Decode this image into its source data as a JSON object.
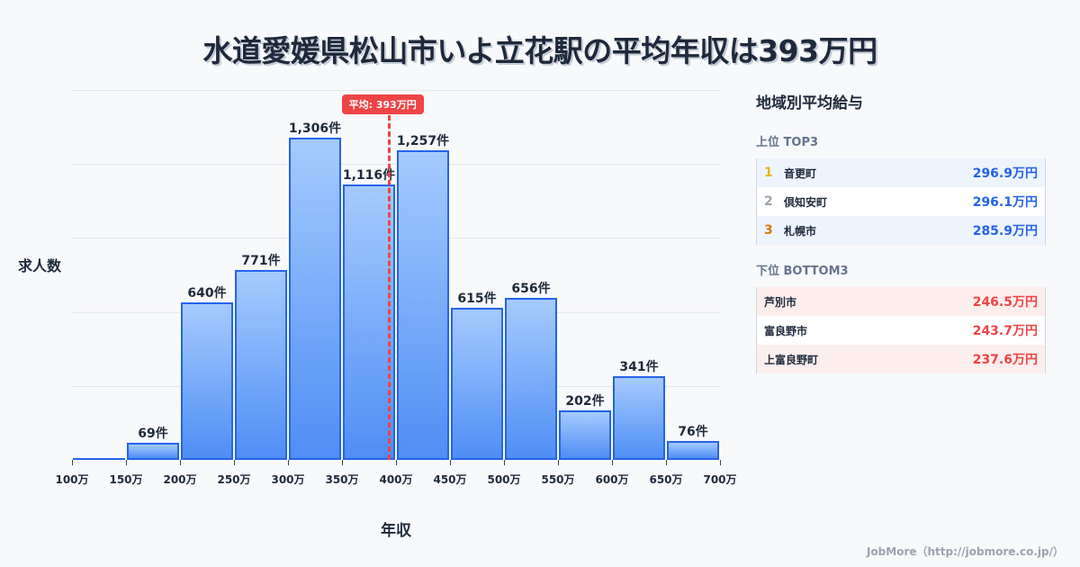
{
  "title": "水道愛媛県松山市いよ立花駅の平均年収は393万円",
  "chart_data": {
    "type": "bar",
    "title": "水道愛媛県松山市いよ立花駅の平均年収は393万円",
    "xlabel": "年収",
    "ylabel": "求人数",
    "x_ticks": [
      "100万",
      "150万",
      "200万",
      "250万",
      "300万",
      "350万",
      "400万",
      "450万",
      "500万",
      "550万",
      "600万",
      "650万",
      "700万"
    ],
    "categories": [
      "100-150万",
      "150-200万",
      "200-250万",
      "250-300万",
      "300-350万",
      "350-400万",
      "400-450万",
      "450-500万",
      "500-550万",
      "550-600万",
      "600-650万",
      "650-700万"
    ],
    "values": [
      3,
      69,
      640,
      771,
      1306,
      1116,
      1257,
      615,
      656,
      202,
      341,
      76
    ],
    "value_labels": [
      "",
      "69件",
      "640件",
      "771件",
      "1,306件",
      "1,116件",
      "1,257件",
      "615件",
      "656件",
      "202件",
      "341件",
      "76件"
    ],
    "ylim": [
      0,
      1500
    ],
    "y_gridlines": [
      0,
      300,
      600,
      900,
      1200,
      1500
    ],
    "grid": true,
    "mean_line": {
      "value": 393,
      "label": "平均: 393万円",
      "color": "#ef4444"
    },
    "bar_color": "#4f8ef5",
    "bar_border": "#2563eb"
  },
  "sidebar": {
    "title": "地域別平均給与",
    "top": {
      "heading": "上位 TOP3",
      "rows": [
        {
          "rank": "1",
          "name": "音更町",
          "value": "296.9万円",
          "rank_color": "#eab308"
        },
        {
          "rank": "2",
          "name": "倶知安町",
          "value": "296.1万円",
          "rank_color": "#9ca3af"
        },
        {
          "rank": "3",
          "name": "札幌市",
          "value": "285.9万円",
          "rank_color": "#d97706"
        }
      ]
    },
    "bottom": {
      "heading": "下位 BOTTOM3",
      "rows": [
        {
          "name": "芦別市",
          "value": "246.5万円"
        },
        {
          "name": "富良野市",
          "value": "243.7万円"
        },
        {
          "name": "上富良野町",
          "value": "237.6万円"
        }
      ]
    }
  },
  "footer": "JobMore（http://jobmore.co.jp/）"
}
